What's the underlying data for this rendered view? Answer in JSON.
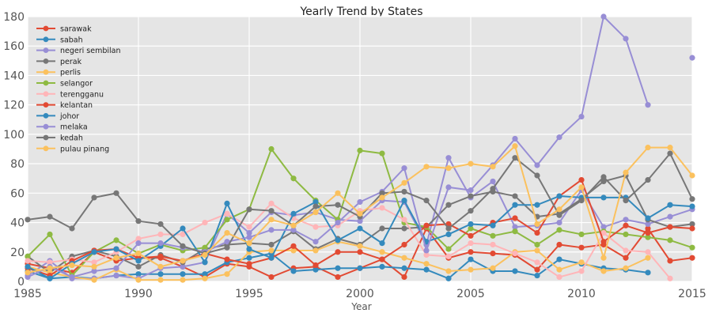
{
  "chart_data": {
    "type": "line",
    "title": "Yearly Trend by States",
    "xlabel": "Year",
    "ylabel": "",
    "xlim": [
      1985,
      2015
    ],
    "ylim": [
      0,
      180
    ],
    "xticks": [
      "1985",
      "1990",
      "1995",
      "2000",
      "2005",
      "2010",
      "2015"
    ],
    "yticks": [
      "0",
      "20",
      "40",
      "60",
      "80",
      "100",
      "120",
      "140",
      "160",
      "180"
    ],
    "grid": true,
    "legend_position": "upper-left",
    "background": "#e5e5e5",
    "x": [
      1985,
      1986,
      1987,
      1988,
      1989,
      1990,
      1991,
      1992,
      1993,
      1994,
      1995,
      1996,
      1997,
      1998,
      1999,
      2000,
      2001,
      2002,
      2003,
      2004,
      2005,
      2006,
      2007,
      2008,
      2009,
      2010,
      2011,
      2012,
      2013,
      2014,
      2015
    ],
    "series": [
      {
        "name": "sarawak",
        "color": "#E24A33",
        "values": [
          12,
          9,
          6,
          20,
          14,
          16,
          16,
          10,
          3,
          12,
          10,
          3,
          9,
          10,
          3,
          9,
          15,
          3,
          36,
          16,
          20,
          19,
          18,
          8,
          25,
          23,
          25,
          16,
          36,
          14,
          16
        ]
      },
      {
        "name": "sabah",
        "color": "#348ABD",
        "values": [
          7,
          2,
          3,
          2,
          4,
          5,
          5,
          5,
          5,
          13,
          16,
          19,
          7,
          8,
          9,
          9,
          10,
          9,
          8,
          2,
          15,
          7,
          7,
          4,
          15,
          12,
          9,
          8,
          6,
          null,
          null
        ]
      },
      {
        "name": "negeri sembilan",
        "color": "#988ED5",
        "values": [
          4,
          14,
          2,
          2,
          4,
          2,
          9,
          10,
          13,
          46,
          33,
          47,
          45,
          47,
          42,
          41,
          55,
          54,
          25,
          84,
          57,
          68,
          37,
          38,
          40,
          62,
          37,
          42,
          39,
          44,
          49
        ]
      },
      {
        "name": "perak",
        "color": "#777777",
        "values": [
          17,
          6,
          17,
          21,
          17,
          10,
          18,
          13,
          22,
          25,
          26,
          25,
          34,
          22,
          29,
          25,
          36,
          36,
          37,
          52,
          58,
          61,
          58,
          44,
          46,
          56,
          68,
          72,
          42,
          37,
          39
        ]
      },
      {
        "name": "perlis",
        "color": "#FBC15E",
        "values": [
          10,
          6,
          3,
          1,
          8,
          1,
          1,
          1,
          2,
          5,
          20,
          21,
          21,
          21,
          27,
          24,
          20,
          16,
          12,
          7,
          8,
          9,
          20,
          21,
          8,
          13,
          7,
          9,
          16,
          null,
          null
        ]
      },
      {
        "name": "selangor",
        "color": "#8EBA42",
        "values": [
          17,
          32,
          4,
          20,
          28,
          19,
          25,
          21,
          23,
          42,
          49,
          90,
          70,
          55,
          42,
          89,
          87,
          40,
          37,
          22,
          36,
          31,
          34,
          25,
          35,
          32,
          34,
          32,
          30,
          28,
          23
        ]
      },
      {
        "name": "terengganu",
        "color": "#FFB5B8",
        "values": [
          14,
          13,
          15,
          13,
          20,
          29,
          32,
          32,
          40,
          46,
          37,
          53,
          43,
          37,
          38,
          48,
          50,
          42,
          18,
          17,
          26,
          25,
          19,
          13,
          3,
          7,
          33,
          21,
          20,
          2,
          null
        ]
      },
      {
        "name": "kelantan",
        "color": "#E24A33",
        "values": [
          9,
          4,
          14,
          21,
          22,
          16,
          17,
          14,
          19,
          15,
          12,
          16,
          24,
          11,
          20,
          20,
          15,
          25,
          38,
          39,
          31,
          40,
          43,
          33,
          58,
          69,
          27,
          38,
          33,
          37,
          36
        ]
      },
      {
        "name": "johor",
        "color": "#348ABD",
        "values": [
          10,
          2,
          12,
          20,
          22,
          14,
          24,
          36,
          13,
          53,
          22,
          16,
          46,
          54,
          28,
          36,
          26,
          55,
          27,
          32,
          39,
          38,
          52,
          52,
          58,
          57,
          57,
          57,
          43,
          52,
          51
        ]
      },
      {
        "name": "melaka",
        "color": "#988ED5",
        "values": [
          3,
          10,
          3,
          7,
          9,
          26,
          26,
          23,
          20,
          27,
          30,
          35,
          35,
          27,
          40,
          54,
          61,
          77,
          21,
          64,
          62,
          79,
          97,
          79,
          98,
          112,
          180,
          165,
          120,
          null,
          152
        ]
      },
      {
        "name": "kedah",
        "color": "#777777",
        "values": [
          42,
          44,
          36,
          57,
          60,
          41,
          39,
          24,
          19,
          23,
          49,
          48,
          38,
          51,
          52,
          44,
          60,
          61,
          55,
          36,
          48,
          63,
          84,
          72,
          45,
          55,
          71,
          55,
          69,
          87,
          56
        ]
      },
      {
        "name": "pulau pinang",
        "color": "#FBC15E",
        "values": [
          6,
          9,
          11,
          10,
          16,
          19,
          10,
          14,
          18,
          33,
          26,
          42,
          38,
          47,
          60,
          46,
          57,
          67,
          78,
          77,
          80,
          78,
          92,
          39,
          49,
          64,
          16,
          74,
          91,
          91,
          72
        ]
      }
    ]
  }
}
